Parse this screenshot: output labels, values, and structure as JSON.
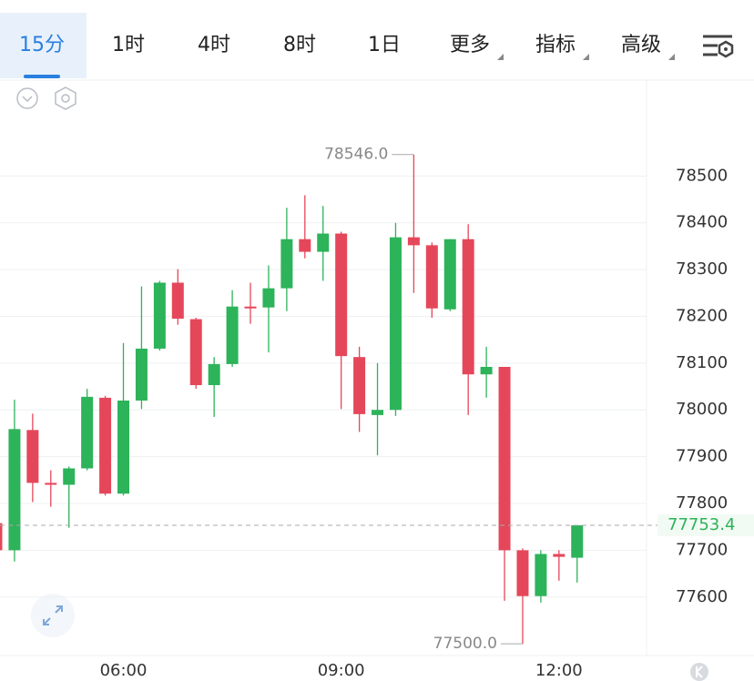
{
  "toolbar": {
    "tabs": [
      "15分",
      "1时",
      "4时",
      "8时",
      "1日",
      "更多",
      "指标",
      "高级"
    ],
    "active": 0
  },
  "chart_data": {
    "type": "candlestick",
    "categories": [
      null,
      null,
      null,
      null,
      null,
      null,
      null,
      "06:00",
      null,
      null,
      null,
      null,
      null,
      null,
      null,
      null,
      null,
      null,
      null,
      "09:00",
      null,
      null,
      null,
      null,
      null,
      null,
      null,
      null,
      null,
      null,
      null,
      "12:00",
      null
    ],
    "open": [
      77758,
      77700,
      77957,
      77844,
      77840,
      77875,
      78026,
      77821,
      78020,
      78131,
      78272,
      78194,
      78053,
      78098,
      78221,
      78219,
      78260,
      78365,
      78338,
      78377,
      78113,
      77989,
      78000,
      78369,
      78352,
      78215,
      78365,
      78076,
      78092,
      77700,
      77602,
      77692,
      77684
    ],
    "high": [
      77764,
      78022,
      77992,
      77871,
      77879,
      78045,
      78030,
      78143,
      78264,
      78276,
      78301,
      78197,
      78113,
      78256,
      78272,
      78309,
      78432,
      78459,
      78436,
      78381,
      78135,
      78100,
      78400,
      78546,
      78358,
      78365,
      78397,
      78135,
      78092,
      77704,
      77700,
      77700,
      77753.4
    ],
    "low": [
      77686,
      77676,
      77803,
      77793,
      77748,
      77871,
      77817,
      77817,
      78002,
      78127,
      78182,
      78045,
      77985,
      78092,
      78184,
      78123,
      78211,
      78324,
      78276,
      78002,
      77953,
      77903,
      77987,
      78250,
      78197,
      78211,
      77989,
      78026,
      77592,
      77500,
      77588,
      77635,
      77631
    ],
    "close": [
      77700,
      77959,
      77844,
      77840,
      77875,
      78028,
      77821,
      78020,
      78131,
      78272,
      78195,
      78053,
      78098,
      78221,
      78217,
      78260,
      78365,
      78338,
      78377,
      78115,
      77991,
      78000,
      78369,
      78352,
      78217,
      78365,
      78076,
      78092,
      77700,
      77602,
      77692,
      77686,
      77753.4
    ],
    "up_color": "#2db35a",
    "down_color": "#e5475a",
    "ylim": [
      77475,
      78705
    ],
    "yticks": [
      77600,
      77700,
      77800,
      77900,
      78000,
      78100,
      78200,
      78300,
      78400,
      78500
    ],
    "grid": true,
    "high_marker": {
      "value": 78546,
      "label": "78546.0"
    },
    "low_marker": {
      "value": 77500,
      "label": "77500.0"
    },
    "last_price": {
      "value": 77753.4,
      "label": "77753.4"
    }
  }
}
